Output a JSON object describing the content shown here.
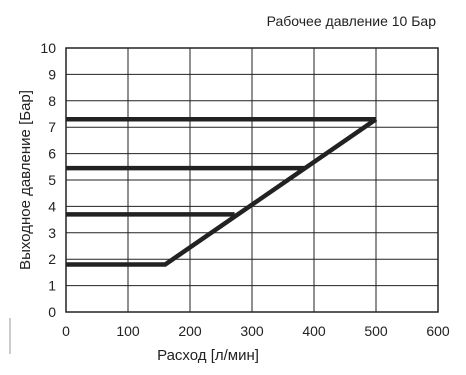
{
  "chart_data": {
    "type": "line",
    "subtitle": "Рабочее давление 10 Бар",
    "xlabel": "Расход [л/мин]",
    "ylabel": "Выходное давление [Бар]",
    "xlim": [
      0,
      600
    ],
    "ylim": [
      0,
      10
    ],
    "x_ticks": [
      "0",
      "100",
      "200",
      "300",
      "400",
      "500",
      "600"
    ],
    "y_ticks": [
      "0",
      "1",
      "2",
      "3",
      "4",
      "5",
      "6",
      "7",
      "8",
      "9",
      "10"
    ],
    "grid": true,
    "series": [
      {
        "x": [
          0,
          160,
          500
        ],
        "y": [
          1.8,
          1.8,
          7.3
        ]
      },
      {
        "x": [
          0,
          272
        ],
        "y": [
          3.7,
          3.7
        ]
      },
      {
        "x": [
          0,
          385
        ],
        "y": [
          5.45,
          5.45
        ]
      },
      {
        "x": [
          0,
          500
        ],
        "y": [
          7.3,
          7.3
        ]
      }
    ],
    "colors": {
      "line": "#222222",
      "grid": "#222222",
      "border": "#222222"
    }
  }
}
